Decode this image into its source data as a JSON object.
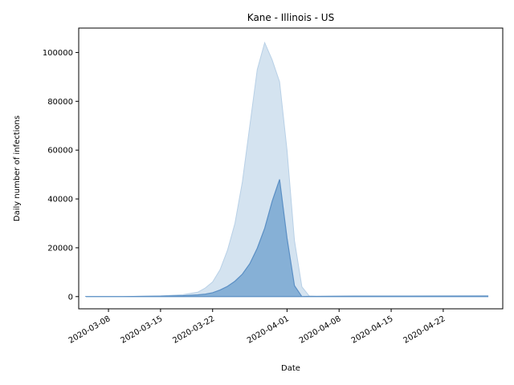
{
  "chart_data": {
    "type": "area",
    "title": "Kane - Illinois - US",
    "xlabel": "Date",
    "ylabel": "Daily number of infections",
    "x_ticks": [
      "2020-03-08",
      "2020-03-15",
      "2020-03-22",
      "2020-04-01",
      "2020-04-08",
      "2020-04-15",
      "2020-04-22"
    ],
    "y_ticks": [
      0,
      20000,
      40000,
      60000,
      80000,
      100000
    ],
    "xlim": [
      "2020-03-04",
      "2020-04-30"
    ],
    "ylim": [
      -5000,
      110000
    ],
    "grid": false,
    "colors": {
      "band": "#d4e3f0",
      "band_edge": "#b8d0e6",
      "median": "#86b0d6",
      "median_edge": "#5b8fc4"
    },
    "x": [
      "2020-03-05",
      "2020-03-10",
      "2020-03-15",
      "2020-03-18",
      "2020-03-20",
      "2020-03-21",
      "2020-03-22",
      "2020-03-23",
      "2020-03-24",
      "2020-03-25",
      "2020-03-26",
      "2020-03-27",
      "2020-03-28",
      "2020-03-29",
      "2020-03-30",
      "2020-03-31",
      "2020-04-01",
      "2020-04-02",
      "2020-04-03",
      "2020-04-04",
      "2020-04-05",
      "2020-04-10",
      "2020-04-20",
      "2020-04-28"
    ],
    "series": [
      {
        "values_upper": [
          0,
          0,
          300,
          800,
          1800,
          3500,
          6000,
          11000,
          19000,
          30000,
          47000,
          70000,
          93000,
          104000,
          97000,
          88000,
          60000,
          23000,
          4000,
          200,
          100,
          200,
          300,
          400
        ]
      },
      {
        "values": [
          0,
          0,
          200,
          400,
          700,
          1000,
          1600,
          2700,
          4200,
          6300,
          9200,
          13500,
          19800,
          28000,
          39000,
          48000,
          24000,
          4500,
          0,
          100,
          100,
          200,
          200,
          200
        ]
      }
    ]
  }
}
